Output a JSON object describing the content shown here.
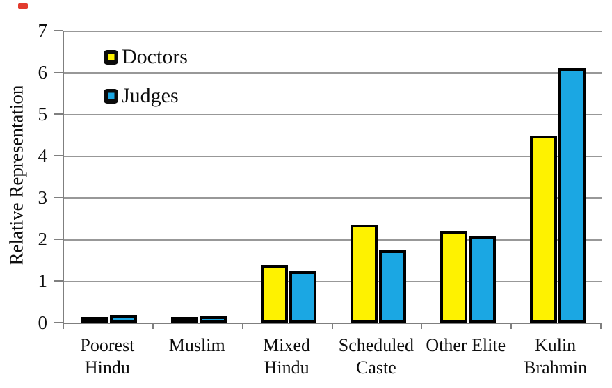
{
  "chart_data": {
    "type": "bar",
    "title": "",
    "ylabel": "Relative Representation",
    "xlabel": "",
    "categories": [
      "Poorest\nHindu",
      "Muslim",
      "Mixed\nHindu",
      "Scheduled\nCaste",
      "Other Elite",
      "Kulin\nBrahmin"
    ],
    "series": [
      {
        "name": "Doctors",
        "color": "#FEF200",
        "values": [
          0.08,
          0.12,
          1.38,
          2.35,
          2.2,
          4.48
        ]
      },
      {
        "name": "Judges",
        "color": "#1BA7E3",
        "values": [
          0.18,
          0.15,
          1.24,
          1.73,
          2.06,
          6.1
        ]
      }
    ],
    "ylim": [
      0,
      7
    ],
    "yticks": [
      0,
      1,
      2,
      3,
      4,
      5,
      6,
      7
    ],
    "grid": true,
    "legend_position": "top-left",
    "style": {
      "axis_color": "#7f7f7f",
      "gridline_color": "#989898",
      "bar_outline": "#000000",
      "background": "#ffffff",
      "red_marker": "#e23b2e"
    }
  }
}
